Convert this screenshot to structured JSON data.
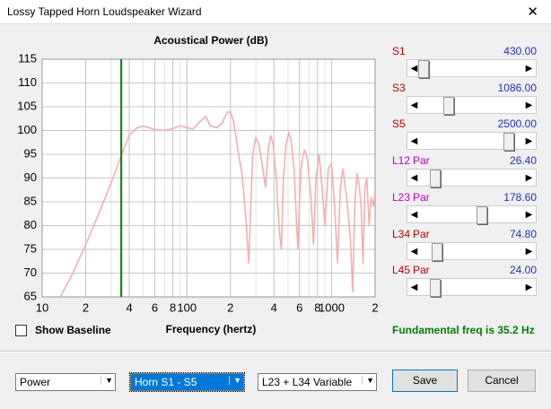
{
  "window": {
    "title": "Lossy Tapped Horn Loudspeaker Wizard"
  },
  "chart_data": {
    "type": "line",
    "title": "Acoustical Power (dB)",
    "x_label": "Frequency (hertz)",
    "x": [
      13.3,
      16,
      20,
      25,
      30,
      35,
      40,
      45,
      50,
      60,
      70,
      80,
      90,
      100,
      110,
      120,
      135,
      145,
      160,
      175,
      190,
      200,
      210,
      225,
      240,
      255,
      268,
      275,
      285,
      300,
      315,
      335,
      350,
      365,
      380,
      395,
      415,
      435,
      450,
      465,
      485,
      505,
      525,
      550,
      570,
      585,
      600,
      620,
      650,
      680,
      720,
      750,
      780,
      820,
      860,
      900,
      950,
      1000,
      1050,
      1100,
      1150,
      1200,
      1280,
      1350,
      1400,
      1450,
      1500,
      1560,
      1600,
      1650,
      1700,
      1750,
      1820,
      1880,
      1950,
      2000
    ],
    "values": [
      65,
      69.5,
      76,
      83,
      89,
      94.5,
      99,
      100.5,
      101,
      100.2,
      100,
      100.4,
      101,
      100.6,
      100.3,
      101.5,
      103,
      101,
      100.6,
      101.5,
      103.8,
      104,
      102,
      96,
      91,
      82,
      72,
      82,
      95,
      98.5,
      97,
      92,
      88,
      96,
      99,
      97,
      90,
      79,
      75,
      90,
      97,
      99.5,
      98,
      92,
      82,
      75,
      85,
      93,
      96,
      94,
      86,
      76,
      90,
      95,
      88,
      80,
      92,
      93,
      84,
      72,
      88,
      92,
      85,
      77,
      66,
      85,
      91,
      88,
      84,
      72,
      88,
      90,
      80,
      86,
      84,
      87
    ],
    "color": "#f4b0b0",
    "xscale": "log",
    "xlim": [
      10,
      2000
    ],
    "ylim": [
      65,
      115
    ],
    "xticks": [
      10,
      {
        "value": 20,
        "label": "2"
      },
      {
        "value": 40,
        "label": "4"
      },
      {
        "value": 60,
        "label": "6"
      },
      {
        "value": 80,
        "label": "8"
      },
      100,
      {
        "value": 200,
        "label": "2"
      },
      {
        "value": 400,
        "label": "4"
      },
      {
        "value": 600,
        "label": "6"
      },
      {
        "value": 800,
        "label": "8"
      },
      1000,
      {
        "value": 2000,
        "label": "2"
      }
    ],
    "yticks": [
      65,
      70,
      75,
      80,
      85,
      90,
      95,
      100,
      105,
      110,
      115
    ],
    "grid": true,
    "marker": {
      "x": 35.2,
      "color": "#008000"
    }
  },
  "sliders": [
    {
      "label": "S1",
      "value": "430.00"
    },
    {
      "label": "S3",
      "value": "1086.00"
    },
    {
      "label": "S5",
      "value": "2500.00"
    },
    {
      "label": "L12",
      "suffix": "Par",
      "value": "26.40"
    },
    {
      "label": "L23",
      "suffix": "Par",
      "value": "178.60"
    },
    {
      "label": "L34",
      "suffix": "Par",
      "value": "74.80"
    },
    {
      "label": "L45",
      "suffix": "Par",
      "value": "24.00"
    }
  ],
  "checkbox": "Show Baseline",
  "status": "Fundamental freq is 35.2 Hz",
  "dropdowns": [
    "Power",
    "Horn S1 - S5",
    "L23 + L34 Variable"
  ],
  "buttons": [
    "Save",
    "Cancel"
  ]
}
